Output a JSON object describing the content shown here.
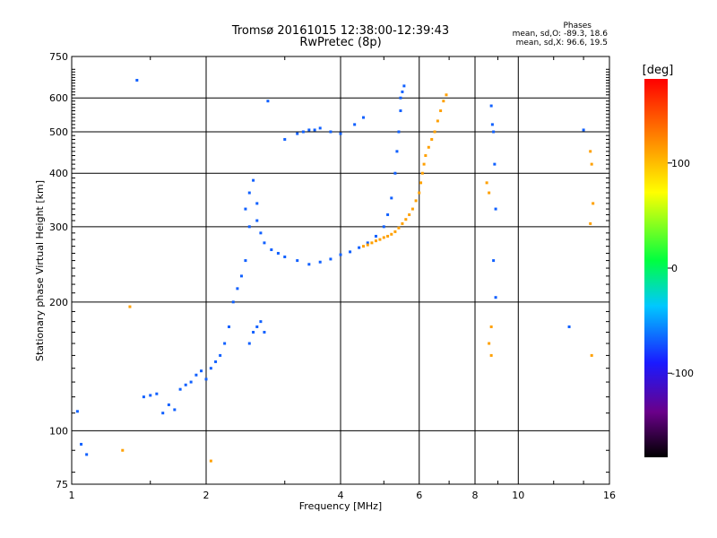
{
  "chart_data": {
    "type": "scatter",
    "title": "Tromsø 20161015 12:38:00-12:39:43",
    "subtitle": "RwPretec (8p)",
    "xlabel": "Frequency [MHz]",
    "ylabel": "Stationary phase Virtual Height [km]",
    "x_scale": "log",
    "y_scale": "log",
    "xlim": [
      1,
      16
    ],
    "ylim": [
      75,
      750
    ],
    "x_ticks": [
      1,
      2,
      4,
      6,
      8,
      10,
      16
    ],
    "x_tick_labels": [
      "1",
      "2",
      "4",
      "6",
      "8",
      "10",
      "16"
    ],
    "y_ticks": [
      75,
      100,
      200,
      300,
      400,
      500,
      600,
      750
    ],
    "y_tick_labels": [
      "75",
      "100",
      "200",
      "300",
      "400",
      "500",
      "600",
      "750"
    ],
    "grid": true,
    "colorbar": {
      "label": "[deg]",
      "range": [
        -180,
        180
      ],
      "ticks": [
        100,
        0,
        -100
      ],
      "tick_labels": [
        "100",
        "0",
        "-100"
      ]
    },
    "stats": {
      "header": "Phases",
      "line_o": "mean, sd,O: -89.3, 18.6",
      "line_x": "mean, sd,X:  96.6, 19.5"
    },
    "series": [
      {
        "mode": "O",
        "mean_phase": -89.3,
        "points": [
          [
            1.03,
            111
          ],
          [
            1.05,
            93
          ],
          [
            1.08,
            88
          ],
          [
            1.4,
            660
          ],
          [
            1.45,
            120
          ],
          [
            1.5,
            121
          ],
          [
            1.55,
            122
          ],
          [
            1.6,
            110
          ],
          [
            1.65,
            115
          ],
          [
            1.7,
            112
          ],
          [
            1.75,
            125
          ],
          [
            1.8,
            128
          ],
          [
            1.85,
            130
          ],
          [
            1.9,
            135
          ],
          [
            1.95,
            138
          ],
          [
            2.0,
            132
          ],
          [
            2.05,
            140
          ],
          [
            2.1,
            145
          ],
          [
            2.15,
            150
          ],
          [
            2.2,
            160
          ],
          [
            2.25,
            175
          ],
          [
            2.3,
            200
          ],
          [
            2.35,
            215
          ],
          [
            2.4,
            230
          ],
          [
            2.45,
            250
          ],
          [
            2.5,
            160
          ],
          [
            2.55,
            170
          ],
          [
            2.6,
            175
          ],
          [
            2.65,
            180
          ],
          [
            2.7,
            170
          ],
          [
            2.5,
            300
          ],
          [
            2.45,
            330
          ],
          [
            2.5,
            360
          ],
          [
            2.55,
            385
          ],
          [
            2.6,
            340
          ],
          [
            2.6,
            310
          ],
          [
            2.65,
            290
          ],
          [
            2.7,
            275
          ],
          [
            2.8,
            265
          ],
          [
            2.9,
            260
          ],
          [
            3.0,
            255
          ],
          [
            3.2,
            250
          ],
          [
            3.4,
            245
          ],
          [
            3.6,
            248
          ],
          [
            3.8,
            252
          ],
          [
            4.0,
            258
          ],
          [
            4.2,
            262
          ],
          [
            4.4,
            268
          ],
          [
            4.6,
            275
          ],
          [
            4.8,
            285
          ],
          [
            5.0,
            300
          ],
          [
            5.1,
            320
          ],
          [
            5.2,
            350
          ],
          [
            5.3,
            400
          ],
          [
            5.35,
            450
          ],
          [
            5.4,
            500
          ],
          [
            5.45,
            560
          ],
          [
            5.5,
            620
          ],
          [
            5.55,
            640
          ],
          [
            5.45,
            600
          ],
          [
            3.0,
            480
          ],
          [
            3.2,
            495
          ],
          [
            3.4,
            505
          ],
          [
            3.6,
            510
          ],
          [
            3.8,
            500
          ],
          [
            4.0,
            495
          ],
          [
            4.3,
            520
          ],
          [
            4.5,
            540
          ],
          [
            2.75,
            590
          ],
          [
            8.7,
            575
          ],
          [
            8.75,
            520
          ],
          [
            8.8,
            500
          ],
          [
            8.85,
            420
          ],
          [
            8.9,
            330
          ],
          [
            8.8,
            250
          ],
          [
            8.9,
            205
          ],
          [
            13.0,
            175
          ],
          [
            14.0,
            505
          ],
          [
            3.5,
            505
          ],
          [
            3.3,
            500
          ]
        ]
      },
      {
        "mode": "X",
        "mean_phase": 96.6,
        "points": [
          [
            4.5,
            270
          ],
          [
            4.6,
            272
          ],
          [
            4.7,
            275
          ],
          [
            4.8,
            278
          ],
          [
            4.9,
            280
          ],
          [
            5.0,
            283
          ],
          [
            5.1,
            285
          ],
          [
            5.2,
            288
          ],
          [
            5.3,
            292
          ],
          [
            5.4,
            298
          ],
          [
            5.5,
            305
          ],
          [
            5.6,
            312
          ],
          [
            5.7,
            320
          ],
          [
            5.8,
            330
          ],
          [
            5.9,
            345
          ],
          [
            6.0,
            360
          ],
          [
            6.05,
            380
          ],
          [
            6.1,
            400
          ],
          [
            6.15,
            420
          ],
          [
            6.2,
            440
          ],
          [
            6.3,
            460
          ],
          [
            6.4,
            480
          ],
          [
            6.5,
            500
          ],
          [
            6.6,
            530
          ],
          [
            6.7,
            560
          ],
          [
            6.8,
            590
          ],
          [
            6.9,
            610
          ],
          [
            8.5,
            380
          ],
          [
            8.6,
            360
          ],
          [
            8.7,
            175
          ],
          [
            8.6,
            160
          ],
          [
            8.7,
            150
          ],
          [
            14.5,
            450
          ],
          [
            14.6,
            420
          ],
          [
            14.7,
            340
          ],
          [
            14.5,
            305
          ],
          [
            14.6,
            150
          ],
          [
            1.3,
            90
          ],
          [
            2.05,
            85
          ],
          [
            1.35,
            195
          ]
        ]
      }
    ]
  }
}
